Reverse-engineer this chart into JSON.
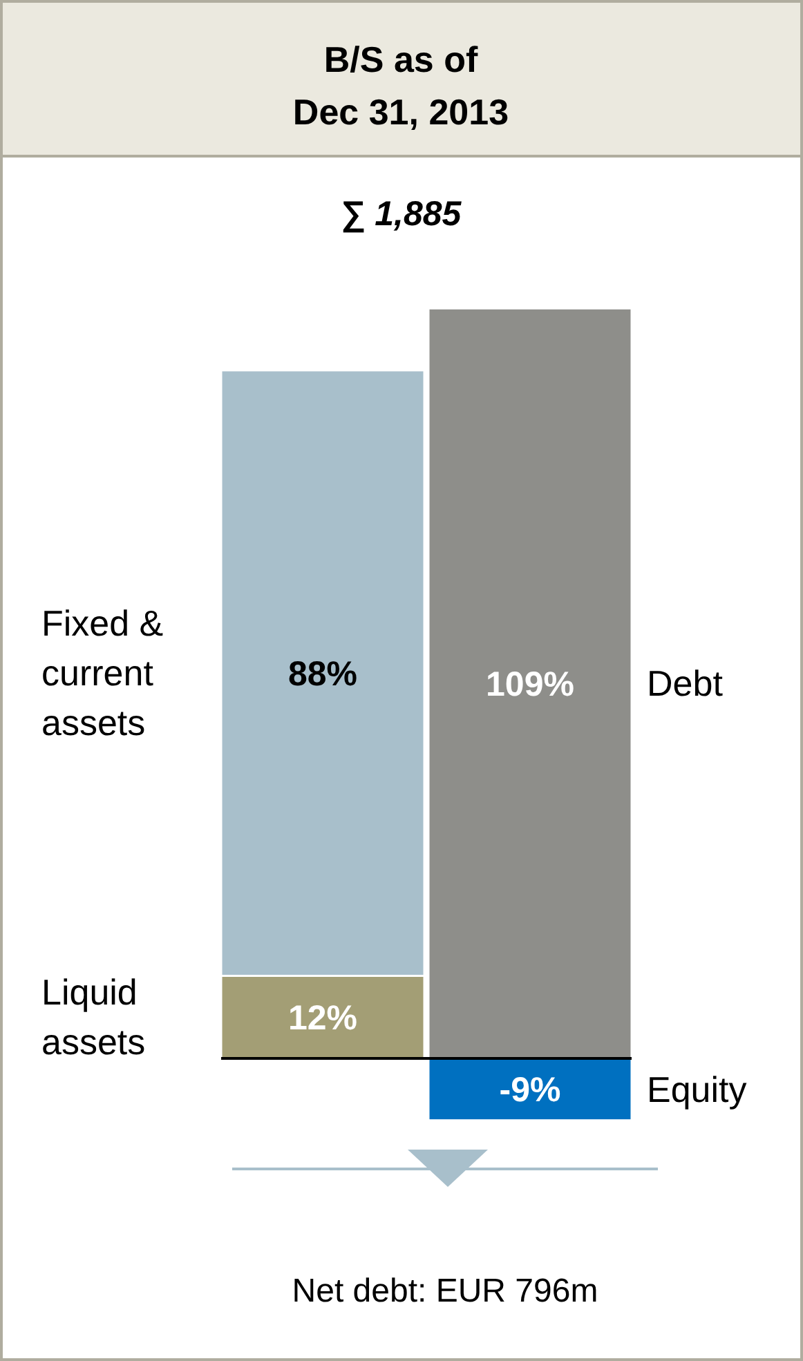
{
  "chart_data": {
    "type": "bar",
    "title": "B/S as of\nDec 31, 2013",
    "stacked": true,
    "legend": false,
    "categories": [
      null,
      null
    ],
    "series": [
      {
        "name": "Liquid assets",
        "color": "#a39e75",
        "values": [
          12,
          null
        ],
        "value_labels": [
          "12%",
          null
        ]
      },
      {
        "name": "Fixed & current assets",
        "color": "#a8bfcb",
        "values": [
          88,
          null
        ],
        "value_labels": [
          "88%",
          null
        ]
      },
      {
        "name": "Debt",
        "color": "#8e8e8a",
        "values": [
          null,
          109
        ],
        "value_labels": [
          null,
          "109%"
        ]
      },
      {
        "name": "Equity",
        "color": "#0070c0",
        "values": [
          null,
          -9
        ],
        "value_labels": [
          null,
          "-9%"
        ]
      }
    ],
    "annotations": [
      "∑ 1,885",
      "Net debt: EUR 796m"
    ]
  }
}
